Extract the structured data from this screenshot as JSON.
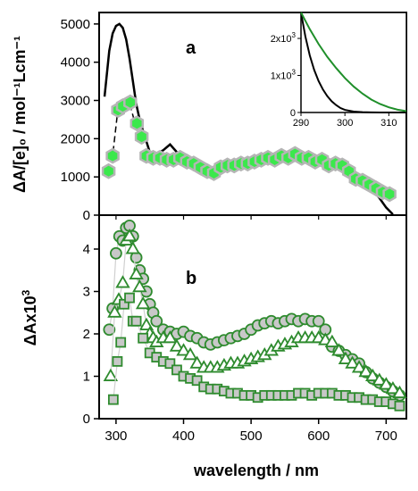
{
  "chart_data": [
    {
      "type": "line",
      "panel_label": "a",
      "xlabel": "wavelength / nm",
      "ylabel": "ΔA/[e]₀ / mol⁻¹Lcm⁻¹",
      "xlim": [
        275,
        730
      ],
      "ylim": [
        0,
        5300
      ],
      "yticks": [
        0,
        1000,
        2000,
        3000,
        4000,
        5000
      ],
      "grid": false,
      "series": [
        {
          "style": "line",
          "color": "#000000",
          "x": [
            283,
            290,
            295,
            300,
            305,
            310,
            315,
            320,
            325,
            330,
            335,
            340,
            350,
            360,
            370,
            380,
            390,
            400,
            410,
            420,
            430,
            440,
            450,
            460,
            470,
            480,
            490,
            500,
            510,
            520,
            530,
            540,
            550,
            560,
            570,
            580,
            590,
            600,
            610,
            620,
            630,
            640,
            650,
            660,
            670,
            680,
            690,
            700,
            710
          ],
          "y": [
            3100,
            4300,
            4750,
            4950,
            5000,
            4900,
            4600,
            4100,
            3500,
            2900,
            2500,
            2200,
            1650,
            1600,
            1700,
            1850,
            1650,
            1550,
            1450,
            1350,
            1280,
            1150,
            1050,
            1150,
            1300,
            1400,
            1450,
            1500,
            1550,
            1580,
            1600,
            1580,
            1570,
            1600,
            1600,
            1580,
            1550,
            1500,
            1400,
            1300,
            1200,
            1100,
            1000,
            900,
            800,
            650,
            450,
            200,
            20
          ]
        },
        {
          "style": "dashed",
          "color": "#000000",
          "x": [
            289,
            295,
            303,
            320,
            331
          ],
          "y": [
            1150,
            1550,
            2800,
            2950,
            2200
          ]
        },
        {
          "style": "markers",
          "marker": "hexagon",
          "color": "#3be84c",
          "x": [
            289,
            295,
            303,
            310,
            321,
            331,
            338,
            345,
            355,
            365,
            375,
            385,
            395,
            405,
            415,
            425,
            435,
            445,
            455,
            465,
            475,
            485,
            495,
            505,
            515,
            525,
            535,
            545,
            555,
            565,
            575,
            585,
            595,
            605,
            615,
            625,
            635,
            645,
            655,
            665,
            675,
            685,
            695,
            705
          ],
          "y": [
            1150,
            1550,
            2750,
            2850,
            2950,
            2400,
            2050,
            1550,
            1500,
            1500,
            1450,
            1450,
            1500,
            1400,
            1350,
            1250,
            1150,
            1100,
            1250,
            1300,
            1300,
            1350,
            1350,
            1400,
            1450,
            1500,
            1450,
            1550,
            1500,
            1600,
            1500,
            1500,
            1400,
            1450,
            1300,
            1350,
            1300,
            1150,
            950,
            900,
            800,
            700,
            600,
            550
          ]
        }
      ],
      "inset": {
        "xlim": [
          290,
          314
        ],
        "ylim": [
          0,
          2700
        ],
        "xticks": [
          290,
          300,
          310
        ],
        "xticklabels": [
          "290",
          "300",
          "310"
        ],
        "yticks": [
          0,
          1000,
          2000
        ],
        "yticklabels": [
          "0",
          "1x10",
          "2x10"
        ],
        "ytick_exponent": "3",
        "series": [
          {
            "style": "line",
            "color": "#000000",
            "x": [
              290,
              291,
              292,
              293,
              294,
              295,
              296,
              297,
              298,
              299,
              300,
              302,
              304,
              306,
              308,
              314
            ],
            "y": [
              2700,
              2050,
              1540,
              1150,
              850,
              620,
              440,
              300,
              200,
              120,
              70,
              25,
              8,
              2,
              0,
              0
            ]
          },
          {
            "style": "line",
            "color": "#1f8f2a",
            "x": [
              290,
              292,
              294,
              296,
              298,
              300,
              302,
              304,
              306,
              308,
              310,
              312,
              314
            ],
            "y": [
              2700,
              2250,
              1850,
              1500,
              1200,
              930,
              700,
              510,
              350,
              230,
              140,
              75,
              35
            ]
          }
        ]
      }
    },
    {
      "type": "scatter",
      "panel_label": "b",
      "xlabel": "wavelength / nm",
      "ylabel": "ΔAx10",
      "ylabel_exponent": "3",
      "xlim": [
        275,
        730
      ],
      "ylim": [
        0,
        4.8
      ],
      "xticks": [
        300,
        400,
        500,
        600,
        700
      ],
      "yticks": [
        0,
        1,
        2,
        3,
        4
      ],
      "grid": false,
      "series": [
        {
          "marker": "circle",
          "color": "#2e8b2e",
          "x": [
            290,
            295,
            300,
            305,
            310,
            315,
            320,
            325,
            330,
            335,
            340,
            345,
            350,
            355,
            360,
            370,
            380,
            390,
            400,
            410,
            420,
            430,
            440,
            450,
            460,
            470,
            480,
            490,
            500,
            510,
            520,
            530,
            540,
            550,
            560,
            570,
            580,
            590,
            600,
            610,
            620,
            630,
            640,
            650,
            660,
            670,
            680,
            690,
            700,
            710,
            720
          ],
          "y": [
            2.1,
            2.6,
            3.9,
            4.3,
            4.2,
            4.5,
            4.55,
            4.3,
            3.8,
            3.5,
            3.3,
            3.0,
            2.7,
            2.5,
            2.3,
            2.1,
            2.05,
            2.0,
            2.05,
            1.95,
            1.9,
            1.8,
            1.75,
            1.8,
            1.85,
            1.9,
            1.95,
            2.0,
            2.1,
            2.2,
            2.25,
            2.3,
            2.25,
            2.3,
            2.35,
            2.3,
            2.35,
            2.3,
            2.3,
            2.1,
            1.7,
            1.6,
            1.5,
            1.4,
            1.3,
            1.1,
            0.95,
            0.85,
            0.75,
            0.65,
            0.55
          ]
        },
        {
          "marker": "triangle",
          "color": "#2e8b2e",
          "x": [
            292,
            298,
            304,
            310,
            315,
            320,
            325,
            330,
            335,
            340,
            345,
            350,
            355,
            360,
            370,
            380,
            390,
            400,
            410,
            420,
            430,
            440,
            450,
            460,
            470,
            480,
            490,
            500,
            510,
            520,
            530,
            540,
            550,
            560,
            570,
            580,
            590,
            600,
            610,
            620,
            630,
            640,
            650,
            660,
            670,
            680,
            690,
            700,
            710,
            720
          ],
          "y": [
            1.0,
            2.5,
            2.8,
            3.2,
            4.2,
            4.3,
            4.0,
            3.4,
            3.1,
            2.7,
            2.2,
            2.0,
            1.9,
            1.8,
            1.9,
            1.9,
            1.7,
            1.6,
            1.5,
            1.3,
            1.2,
            1.2,
            1.2,
            1.25,
            1.3,
            1.3,
            1.35,
            1.4,
            1.45,
            1.5,
            1.6,
            1.7,
            1.75,
            1.8,
            1.9,
            1.9,
            1.9,
            1.9,
            1.85,
            1.8,
            1.6,
            1.4,
            1.3,
            1.2,
            1.1,
            1.0,
            0.9,
            0.8,
            0.7,
            0.6
          ]
        },
        {
          "marker": "square",
          "color": "#2e8b2e",
          "x": [
            296,
            302,
            307,
            312,
            320,
            325,
            330,
            340,
            350,
            360,
            370,
            380,
            390,
            400,
            410,
            420,
            430,
            440,
            450,
            460,
            470,
            480,
            490,
            500,
            510,
            520,
            530,
            540,
            550,
            560,
            570,
            580,
            590,
            600,
            610,
            620,
            630,
            640,
            650,
            660,
            670,
            680,
            690,
            700,
            710,
            720
          ],
          "y": [
            0.45,
            1.35,
            1.8,
            2.7,
            2.85,
            2.3,
            2.3,
            1.9,
            1.55,
            1.45,
            1.35,
            1.3,
            1.15,
            1.0,
            0.95,
            0.9,
            0.75,
            0.7,
            0.7,
            0.65,
            0.6,
            0.6,
            0.55,
            0.55,
            0.5,
            0.55,
            0.55,
            0.55,
            0.55,
            0.55,
            0.6,
            0.6,
            0.55,
            0.6,
            0.6,
            0.6,
            0.55,
            0.55,
            0.5,
            0.5,
            0.45,
            0.45,
            0.4,
            0.4,
            0.35,
            0.3
          ]
        }
      ]
    }
  ]
}
